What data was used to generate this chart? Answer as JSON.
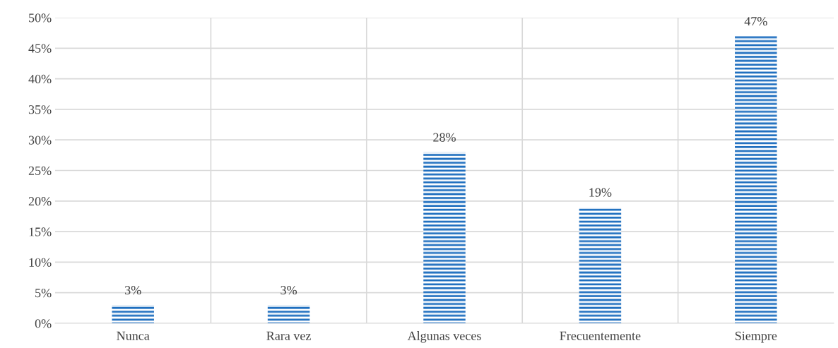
{
  "chart_data": {
    "type": "bar",
    "categories": [
      "Nunca",
      "Rara vez",
      "Algunas veces",
      "Frecuentemente",
      "Siempre"
    ],
    "values": [
      3,
      3,
      28,
      19,
      47
    ],
    "color": "#1f6fbf",
    "data_labels": true,
    "value_labels": [
      "3%",
      "3%",
      "28%",
      "19%",
      "47%"
    ],
    "ylim": [
      0,
      50
    ],
    "yticks": [
      {
        "value": 0,
        "label": "0%"
      },
      {
        "value": 5,
        "label": "5%"
      },
      {
        "value": 10,
        "label": "10%"
      },
      {
        "value": 15,
        "label": "15%"
      },
      {
        "value": 20,
        "label": "20%"
      },
      {
        "value": 25,
        "label": "25%"
      },
      {
        "value": 30,
        "label": "30%"
      },
      {
        "value": 35,
        "label": "35%"
      },
      {
        "value": 40,
        "label": "40%"
      },
      {
        "value": 45,
        "label": "45%"
      },
      {
        "value": 50,
        "label": "50%"
      }
    ],
    "grid": true,
    "legend": false
  }
}
